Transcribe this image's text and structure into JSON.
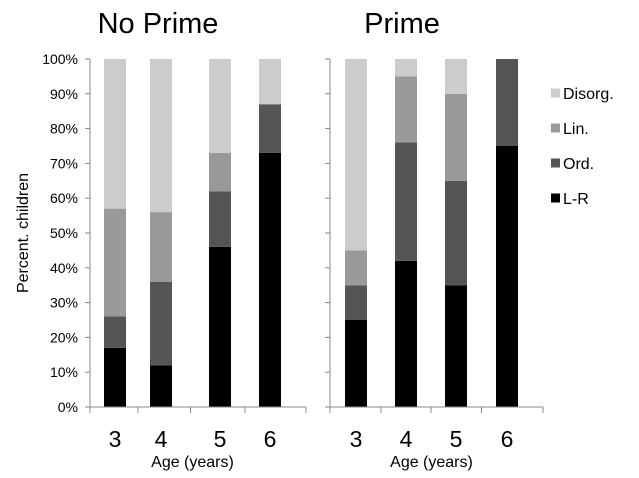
{
  "chart_data": [
    {
      "type": "bar",
      "stacked": true,
      "title": "No Prime",
      "xlabel": "Age (years)",
      "ylabel": "Percent. children",
      "ylim": [
        0,
        100
      ],
      "yticks": [
        "0%",
        "10%",
        "20%",
        "30%",
        "40%",
        "50%",
        "60%",
        "70%",
        "80%",
        "90%",
        "100%"
      ],
      "categories": [
        "3",
        "4",
        "5",
        "6"
      ],
      "series": [
        {
          "name": "L-R",
          "color": "#000000",
          "values": [
            17,
            12,
            46,
            73
          ]
        },
        {
          "name": "Ord.",
          "color": "#555555",
          "values": [
            9,
            24,
            16,
            14
          ]
        },
        {
          "name": "Lin.",
          "color": "#999999",
          "values": [
            31,
            20,
            11,
            0
          ]
        },
        {
          "name": "Disorg.",
          "color": "#cccccc",
          "values": [
            43,
            44,
            27,
            13
          ]
        }
      ]
    },
    {
      "type": "bar",
      "stacked": true,
      "title": "Prime",
      "xlabel": "Age (years)",
      "ylabel": "",
      "ylim": [
        0,
        100
      ],
      "categories": [
        "3",
        "4",
        "5",
        "6"
      ],
      "series": [
        {
          "name": "L-R",
          "color": "#000000",
          "values": [
            25,
            42,
            35,
            75
          ]
        },
        {
          "name": "Ord.",
          "color": "#555555",
          "values": [
            10,
            34,
            30,
            25
          ]
        },
        {
          "name": "Lin.",
          "color": "#999999",
          "values": [
            10,
            19,
            25,
            0
          ]
        },
        {
          "name": "Disorg.",
          "color": "#cccccc",
          "values": [
            55,
            5,
            10,
            0
          ]
        }
      ]
    }
  ],
  "legend": {
    "placement": "right",
    "items": [
      {
        "name": "Disorg.",
        "color": "#cccccc"
      },
      {
        "name": "Lin.",
        "color": "#999999"
      },
      {
        "name": "Ord.",
        "color": "#555555"
      },
      {
        "name": "L-R",
        "color": "#000000"
      }
    ]
  }
}
